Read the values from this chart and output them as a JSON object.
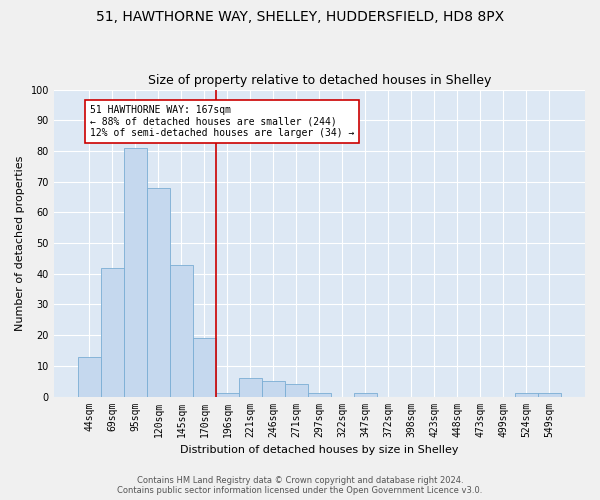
{
  "title1": "51, HAWTHORNE WAY, SHELLEY, HUDDERSFIELD, HD8 8PX",
  "title2": "Size of property relative to detached houses in Shelley",
  "xlabel": "Distribution of detached houses by size in Shelley",
  "ylabel": "Number of detached properties",
  "categories": [
    "44sqm",
    "69sqm",
    "95sqm",
    "120sqm",
    "145sqm",
    "170sqm",
    "196sqm",
    "221sqm",
    "246sqm",
    "271sqm",
    "297sqm",
    "322sqm",
    "347sqm",
    "372sqm",
    "398sqm",
    "423sqm",
    "448sqm",
    "473sqm",
    "499sqm",
    "524sqm",
    "549sqm"
  ],
  "values": [
    13,
    42,
    81,
    68,
    43,
    19,
    1,
    6,
    5,
    4,
    1,
    0,
    1,
    0,
    0,
    0,
    0,
    0,
    0,
    1,
    1
  ],
  "bar_color": "#c5d8ee",
  "bar_edge_color": "#7aadd4",
  "vline_index": 5,
  "annotation_line1": "51 HAWTHORNE WAY: 167sqm",
  "annotation_line2": "← 88% of detached houses are smaller (244)",
  "annotation_line3": "12% of semi-detached houses are larger (34) →",
  "annotation_box_color": "#ffffff",
  "annotation_box_edge_color": "#cc0000",
  "vline_color": "#cc0000",
  "background_color": "#dde8f4",
  "plot_bg_color": "#dde8f4",
  "grid_color": "#ffffff",
  "fig_bg_color": "#f0f0f0",
  "footer1": "Contains HM Land Registry data © Crown copyright and database right 2024.",
  "footer2": "Contains public sector information licensed under the Open Government Licence v3.0.",
  "ylim": [
    0,
    100
  ],
  "title1_fontsize": 10,
  "title2_fontsize": 9,
  "xlabel_fontsize": 8,
  "ylabel_fontsize": 8,
  "tick_fontsize": 7,
  "annot_fontsize": 7,
  "footer_fontsize": 6
}
